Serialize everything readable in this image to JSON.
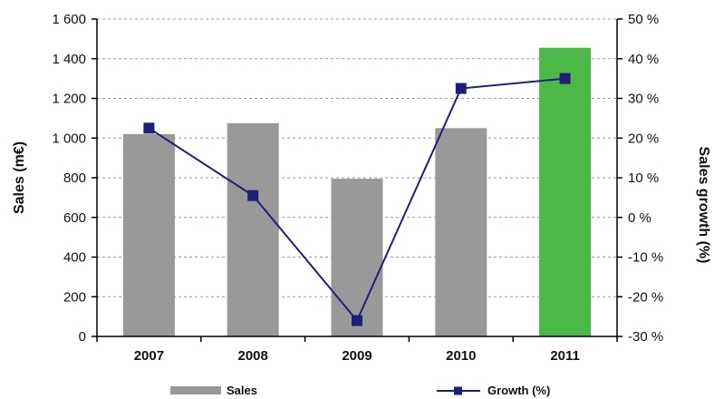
{
  "chart_data": {
    "type": "bar+line",
    "categories": [
      "2007",
      "2008",
      "2009",
      "2010",
      "2011"
    ],
    "series": [
      {
        "name": "Sales",
        "type": "bar",
        "axis": "left",
        "values": [
          1020,
          1075,
          795,
          1050,
          1455
        ],
        "colors": [
          "#999999",
          "#999999",
          "#999999",
          "#999999",
          "#4cb847"
        ]
      },
      {
        "name": "Growth (%)",
        "type": "line",
        "axis": "right",
        "values": [
          22.5,
          5.5,
          -26,
          32.5,
          35
        ],
        "color": "#1f1f7a",
        "marker": "square"
      }
    ],
    "ylabel_left": "Sales (m€)",
    "ylabel_right": "Sales growth (%)",
    "ylim_left": [
      0,
      1600
    ],
    "yticks_left": [
      0,
      200,
      400,
      600,
      800,
      1000,
      1200,
      1400,
      1600
    ],
    "ytick_labels_left": [
      "0",
      "200",
      "400",
      "600",
      "800",
      "1 000",
      "1 200",
      "1 400",
      "1 600"
    ],
    "ylim_right": [
      -30,
      50
    ],
    "yticks_right": [
      -30,
      -20,
      -10,
      0,
      10,
      20,
      30,
      40,
      50
    ],
    "ytick_labels_right": [
      "-30 %",
      "-20 %",
      "-10 %",
      "0 %",
      "10 %",
      "20 %",
      "30 %",
      "40 %",
      "50 %"
    ],
    "grid": "horizontal dashed",
    "legend_position": "bottom",
    "colors": {
      "bar": "#999999",
      "highlight_bar": "#4cb847",
      "line": "#1f1f7a",
      "axis": "#000000",
      "grid": "#999999"
    }
  }
}
